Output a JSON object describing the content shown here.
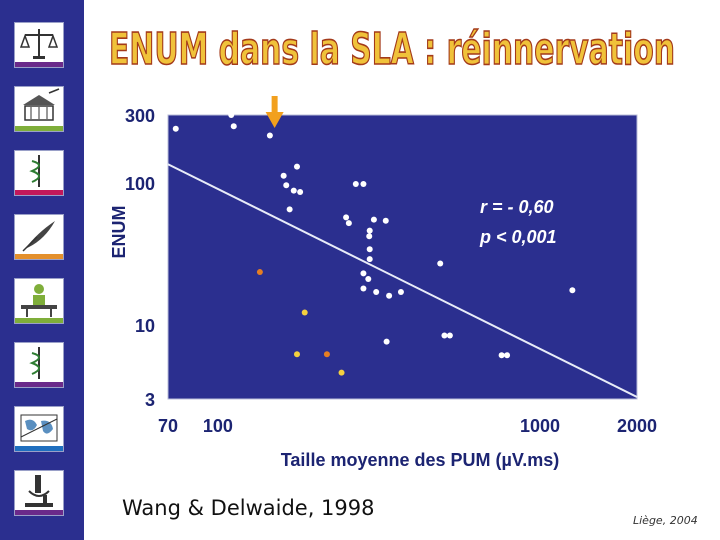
{
  "slide": {
    "title": "ENUM dans la SLA : réinnervation",
    "citation": "Wang & Delwaide, 1998",
    "footer": "Liège, 2004",
    "title_color": "#f0c23a",
    "sidebar_color": "#2b2f8f",
    "sidebar_icons": [
      "balance-scale-icon",
      "building-icon",
      "caduceus-icon",
      "quill-pen-icon",
      "reader-icon",
      "caduceus-icon",
      "world-map-icon",
      "microscope-icon"
    ],
    "stripe_colors": [
      "#6a2a8a",
      "#7fae3a",
      "#c2185b",
      "#e4902c",
      "#7fae3a",
      "#6a2a8a",
      "#1f6fbf",
      "#6a2a8a"
    ]
  },
  "chart_data": {
    "type": "scatter",
    "xlabel": "Taille moyenne des PUM (µV.ms)",
    "ylabel": "ENUM",
    "x_scale": "log",
    "y_scale": "log",
    "xlim": [
      70,
      2000
    ],
    "ylim": [
      3,
      300
    ],
    "x_ticks": [
      {
        "value": 70,
        "label": "70"
      },
      {
        "value": 100,
        "label": "100"
      },
      {
        "value": 1000,
        "label": "1000"
      },
      {
        "value": 2000,
        "label": "2000"
      }
    ],
    "y_ticks": [
      {
        "value": 300,
        "label": "300"
      },
      {
        "value": 100,
        "label": "100"
      },
      {
        "value": 10,
        "label": "10"
      },
      {
        "value": 3,
        "label": "3"
      }
    ],
    "annotation": [
      "r = - 0,60",
      "p < 0,001"
    ],
    "marker_x": 150,
    "background": "#2b2f8f",
    "regression_line": [
      {
        "x": 70,
        "y": 135
      },
      {
        "x": 2000,
        "y": 3.1
      }
    ],
    "series": [
      {
        "color": "#ffffff",
        "points": [
          {
            "x": 74,
            "y": 240
          },
          {
            "x": 110,
            "y": 300
          },
          {
            "x": 112,
            "y": 250
          },
          {
            "x": 145,
            "y": 215
          },
          {
            "x": 160,
            "y": 112
          },
          {
            "x": 176,
            "y": 130
          },
          {
            "x": 163,
            "y": 96
          },
          {
            "x": 172,
            "y": 88
          },
          {
            "x": 180,
            "y": 86
          },
          {
            "x": 167,
            "y": 65
          },
          {
            "x": 250,
            "y": 57
          },
          {
            "x": 255,
            "y": 52
          },
          {
            "x": 268,
            "y": 98
          },
          {
            "x": 283,
            "y": 98
          },
          {
            "x": 296,
            "y": 46
          },
          {
            "x": 295,
            "y": 42
          },
          {
            "x": 305,
            "y": 55
          },
          {
            "x": 332,
            "y": 54
          },
          {
            "x": 296,
            "y": 34
          },
          {
            "x": 296,
            "y": 29
          },
          {
            "x": 293,
            "y": 21
          },
          {
            "x": 283,
            "y": 18
          },
          {
            "x": 283,
            "y": 23
          },
          {
            "x": 310,
            "y": 17
          },
          {
            "x": 340,
            "y": 16
          },
          {
            "x": 370,
            "y": 17
          },
          {
            "x": 334,
            "y": 7.6
          },
          {
            "x": 505,
            "y": 8.4
          },
          {
            "x": 525,
            "y": 8.4
          },
          {
            "x": 490,
            "y": 27
          },
          {
            "x": 760,
            "y": 6.1
          },
          {
            "x": 790,
            "y": 6.1
          },
          {
            "x": 1260,
            "y": 17.5
          }
        ]
      },
      {
        "color": "#f4d03f",
        "points": [
          {
            "x": 186,
            "y": 12.2
          },
          {
            "x": 176,
            "y": 6.2
          },
          {
            "x": 242,
            "y": 4.6
          }
        ]
      },
      {
        "color": "#e67e22",
        "points": [
          {
            "x": 135,
            "y": 23.5
          },
          {
            "x": 218,
            "y": 6.2
          }
        ]
      }
    ]
  }
}
